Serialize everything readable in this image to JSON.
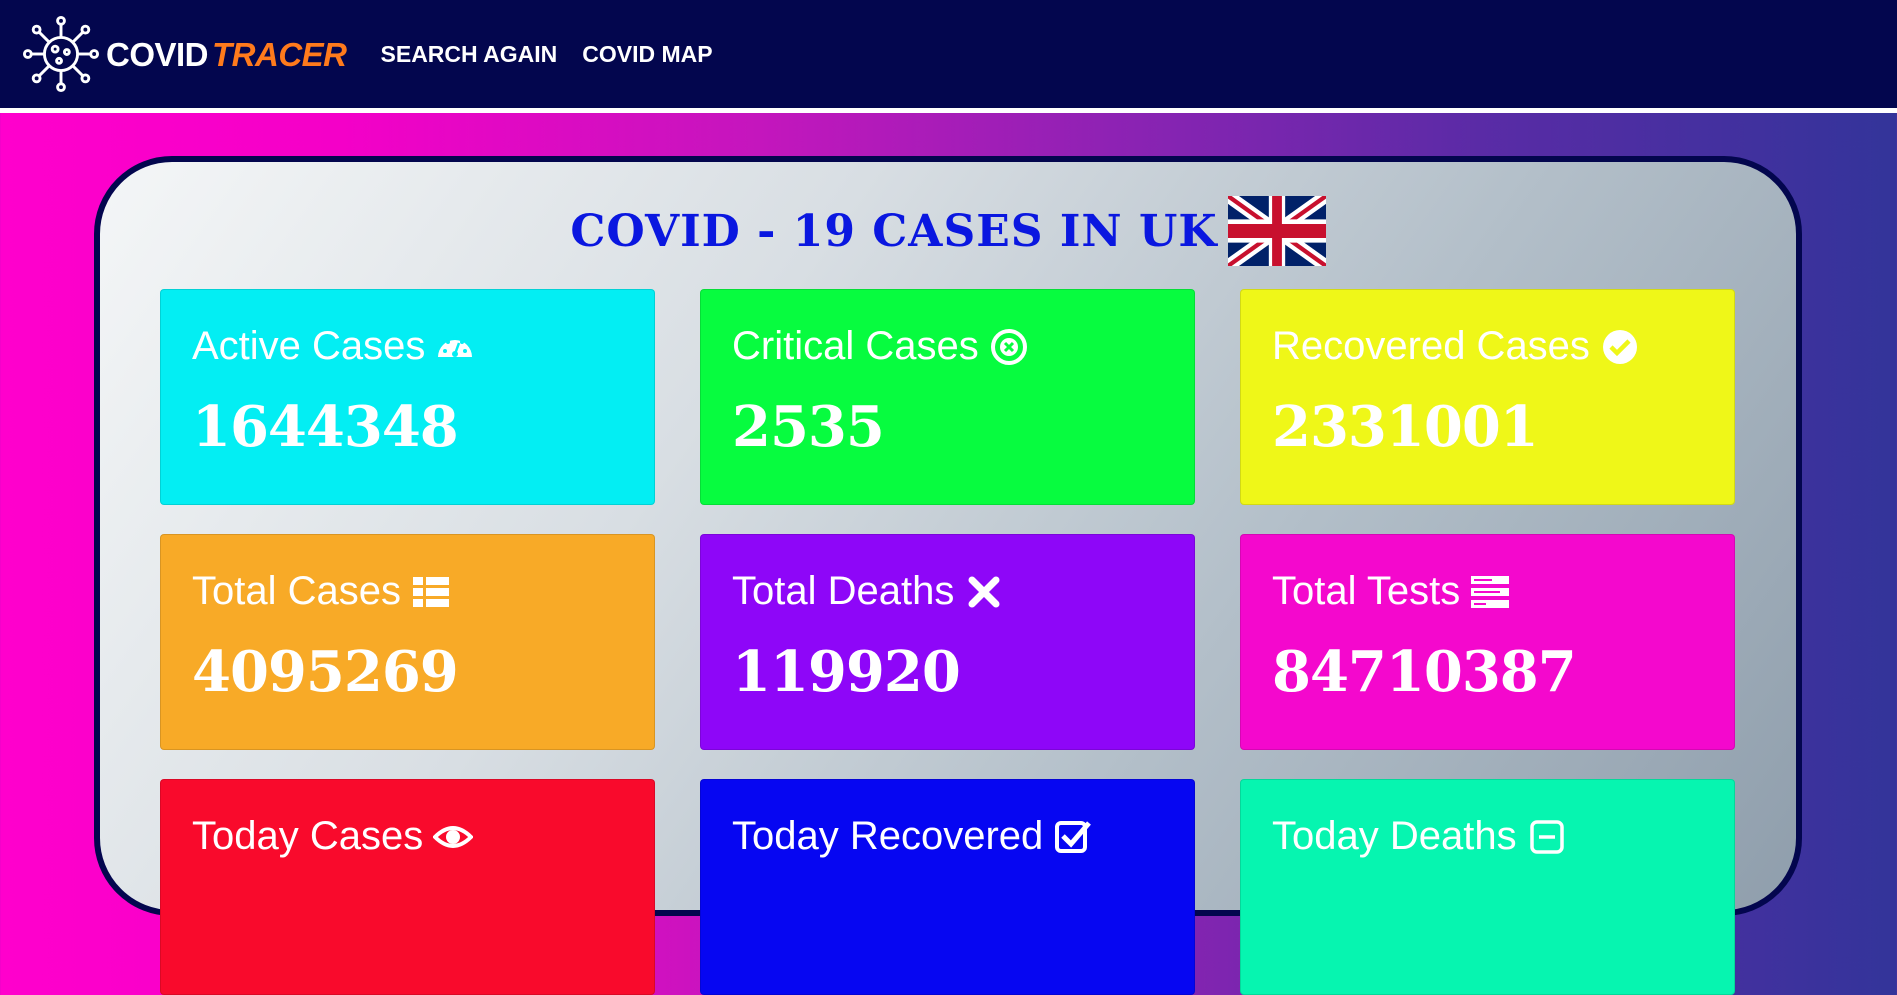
{
  "nav": {
    "brand_covid": "COVID",
    "brand_tracer": "TRACER",
    "links": [
      "SEARCH AGAIN",
      "COVID MAP"
    ]
  },
  "title": "COVID - 19 CASES IN UK",
  "colors": {
    "navbar": "#03064e",
    "brand_accent": "#ff7a1c",
    "title": "#0a17e0"
  },
  "cards": [
    {
      "label": "Active Cases",
      "value": "1644348",
      "icon": "tachometer-icon",
      "color": "#03eef3"
    },
    {
      "label": "Critical Cases",
      "value": "2535",
      "icon": "times-circle-icon",
      "color": "#07fc3f"
    },
    {
      "label": "Recovered Cases",
      "value": "2331001",
      "icon": "check-circle-icon",
      "color": "#eff718"
    },
    {
      "label": "Total Cases",
      "value": "4095269",
      "icon": "list-icon",
      "color": "#f8aa27"
    },
    {
      "label": "Total Deaths",
      "value": "119920",
      "icon": "times-icon",
      "color": "#8e06f8"
    },
    {
      "label": "Total Tests",
      "value": "84710387",
      "icon": "tasks-icon",
      "color": "#f408cd"
    },
    {
      "label": "Today Cases",
      "value": "",
      "icon": "eye-icon",
      "color": "#f90a2c"
    },
    {
      "label": "Today Recovered",
      "value": "",
      "icon": "check-square-icon",
      "color": "#0606f2"
    },
    {
      "label": "Today Deaths",
      "value": "",
      "icon": "minus-square-icon",
      "color": "#06f5b0"
    }
  ]
}
